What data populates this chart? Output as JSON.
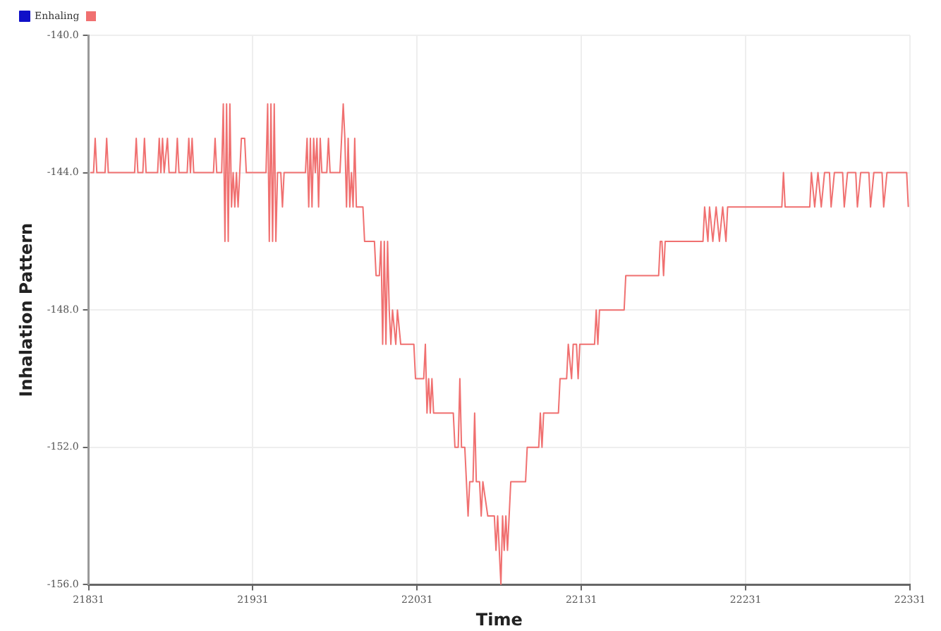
{
  "chart_data": {
    "type": "line",
    "xlabel": "Time",
    "ylabel": "Inhalation Pattern",
    "xlim": [
      21831,
      22331
    ],
    "xticks": [
      21831,
      21931,
      22031,
      22131,
      22231,
      22331
    ],
    "ylim": [
      -156,
      -140
    ],
    "yticks": [
      {
        "value": -156,
        "label": "-156.0"
      },
      {
        "value": -152,
        "label": "-152.0"
      },
      {
        "value": -148,
        "label": "-148.0"
      },
      {
        "value": -144,
        "label": "-144.0"
      },
      {
        "value": -140,
        "label": "-140.0"
      }
    ],
    "grid": true,
    "legend": "top left",
    "marker": "none",
    "line_style": "solid",
    "series": [
      {
        "name": "Enhaling",
        "color": "#1010c8"
      },
      {
        "color": "#f07070",
        "x": [
          21832,
          21834,
          21835,
          21836,
          21841,
          21842,
          21843,
          21859,
          21860,
          21861,
          21864,
          21865,
          21866,
          21873,
          21874,
          21875,
          21876,
          21877,
          21879,
          21880,
          21884,
          21885,
          21886,
          21891,
          21892,
          21893,
          21894,
          21895,
          21907,
          21908,
          21909,
          21912,
          21913,
          21914,
          21915,
          21916,
          21917,
          21918,
          21919,
          21920,
          21921,
          21922,
          21923,
          21924,
          21926,
          21927,
          21930,
          21939,
          21940,
          21941,
          21942,
          21943,
          21944,
          21945,
          21946,
          21948,
          21949,
          21950,
          21963,
          21964,
          21965,
          21966,
          21967,
          21968,
          21969,
          21970,
          21971,
          21972,
          21973,
          21976,
          21977,
          21978,
          21984,
          21985,
          21986,
          21987,
          21988,
          21989,
          21990,
          21991,
          21992,
          21993,
          21994,
          21996,
          21998,
          21999,
          22005,
          22006,
          22008,
          22009,
          22010,
          22011,
          22012,
          22013,
          22014,
          22015,
          22016,
          22018,
          22019,
          22021,
          22029,
          22030,
          22035,
          22036,
          22037,
          22038,
          22039,
          22040,
          22041,
          22053,
          22054,
          22056,
          22057,
          22058,
          22060,
          22061,
          22062,
          22063,
          22065,
          22066,
          22067,
          22069,
          22070,
          22071,
          22074,
          22078,
          22079,
          22080,
          22081,
          22082,
          22083,
          22084,
          22085,
          22086,
          22087,
          22088,
          22097,
          22098,
          22105,
          22106,
          22107,
          22108,
          22117,
          22118,
          22122,
          22123,
          22125,
          22126,
          22128,
          22129,
          22130,
          22139,
          22140,
          22141,
          22142,
          22157,
          22158,
          22178,
          22179,
          22180,
          22181,
          22182,
          22205,
          22206,
          22208,
          22209,
          22211,
          22213,
          22215,
          22217,
          22219,
          22220,
          22253,
          22254,
          22255,
          22270,
          22271,
          22273,
          22275,
          22277,
          22279,
          22282,
          22283,
          22285,
          22290,
          22291,
          22293,
          22298,
          22299,
          22301,
          22306,
          22307,
          22309,
          22314,
          22315,
          22317,
          22329,
          22330
        ],
        "values": [
          -144,
          -144,
          -143,
          -144,
          -144,
          -143,
          -144,
          -144,
          -143,
          -144,
          -144,
          -143,
          -144,
          -144,
          -143,
          -144,
          -143,
          -144,
          -143,
          -144,
          -144,
          -143,
          -144,
          -144,
          -143,
          -144,
          -143,
          -144,
          -144,
          -143,
          -144,
          -144,
          -142,
          -146,
          -142,
          -146,
          -142,
          -145,
          -144,
          -145,
          -144,
          -145,
          -144,
          -143,
          -143,
          -144,
          -144,
          -144,
          -142,
          -146,
          -142,
          -146,
          -142,
          -146,
          -144,
          -144,
          -145,
          -144,
          -144,
          -143,
          -145,
          -143,
          -145,
          -143,
          -144,
          -143,
          -145,
          -143,
          -144,
          -144,
          -143,
          -144,
          -144,
          -143,
          -142,
          -143,
          -145,
          -143,
          -145,
          -144,
          -145,
          -143,
          -145,
          -145,
          -145,
          -146,
          -146,
          -147,
          -147,
          -146,
          -149,
          -146,
          -149,
          -146,
          -148,
          -149,
          -148,
          -149,
          -148,
          -149,
          -149,
          -150,
          -150,
          -149,
          -151,
          -150,
          -151,
          -150,
          -151,
          -151,
          -152,
          -152,
          -150,
          -152,
          -152,
          -153,
          -154,
          -153,
          -153,
          -151,
          -153,
          -153,
          -154,
          -153,
          -154,
          -154,
          -155,
          -154,
          -155,
          -156,
          -154,
          -155,
          -154,
          -155,
          -154,
          -153,
          -153,
          -152,
          -152,
          -151,
          -152,
          -151,
          -151,
          -150,
          -150,
          -149,
          -150,
          -149,
          -149,
          -150,
          -149,
          -149,
          -148,
          -149,
          -148,
          -148,
          -147,
          -147,
          -146,
          -146,
          -147,
          -146,
          -146,
          -145,
          -146,
          -145,
          -146,
          -145,
          -146,
          -145,
          -146,
          -145,
          -145,
          -144,
          -145,
          -145,
          -144,
          -145,
          -144,
          -145,
          -144,
          -144,
          -145,
          -144,
          -144,
          -145,
          -144,
          -144,
          -145,
          -144,
          -144,
          -145,
          -144,
          -144,
          -145,
          -144,
          -144,
          -145
        ]
      }
    ]
  }
}
